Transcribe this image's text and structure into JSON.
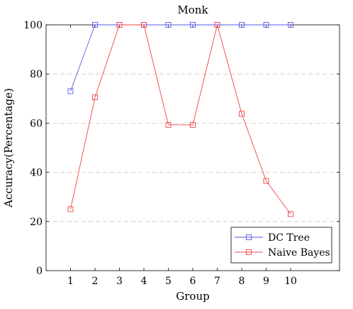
{
  "chart_data": {
    "type": "line",
    "title": "Monk",
    "xlabel": "Group",
    "ylabel": "Accuracy(Percentage)",
    "x": [
      1,
      2,
      3,
      4,
      5,
      6,
      7,
      8,
      9,
      10
    ],
    "xlim": [
      0,
      12
    ],
    "ylim": [
      0,
      100
    ],
    "yticks": [
      0,
      20,
      40,
      60,
      80,
      100
    ],
    "grid": "horizontal dashed",
    "legend_position": "bottom-right",
    "series": [
      {
        "name": "DC Tree",
        "color": "#5a5aea",
        "marker": "square",
        "values": [
          73,
          100,
          100,
          100,
          100,
          100,
          100,
          100,
          100,
          100
        ]
      },
      {
        "name": "Naive Bayes",
        "color": "#ee4444",
        "marker": "square",
        "values": [
          25,
          70.5,
          100,
          100,
          59.3,
          59.3,
          100,
          63.8,
          36.5,
          23
        ]
      }
    ]
  }
}
